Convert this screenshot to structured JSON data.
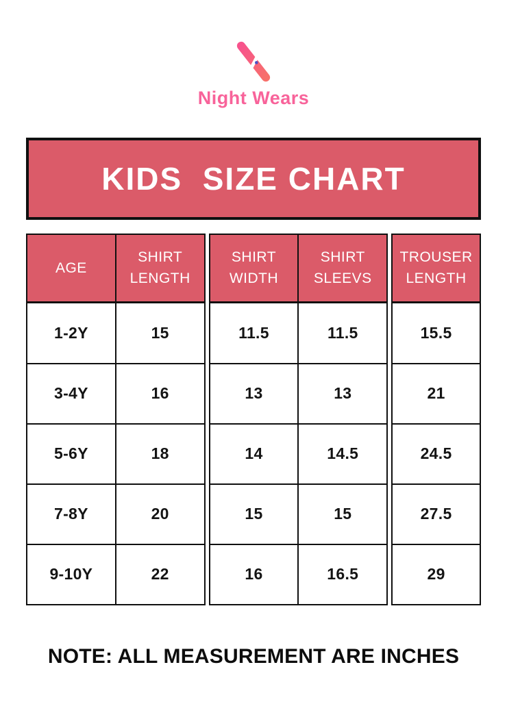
{
  "logo": {
    "icon": "night-wears-n-monogram",
    "brand": "Night Wears"
  },
  "banner": {
    "title": "KIDS  SIZE CHART"
  },
  "table": {
    "columns": [
      {
        "key": "age",
        "label": "AGE",
        "block": 0
      },
      {
        "key": "shirt-length",
        "label": "SHIRT LENGTH",
        "block": 0
      },
      {
        "key": "shirt-width",
        "label": "SHIRT WIDTH",
        "block": 1
      },
      {
        "key": "shirt-sleevs",
        "label": "SHIRT SLEEVS",
        "block": 1
      },
      {
        "key": "trouser-length",
        "label": "TROUSER LENGTH",
        "block": 2
      }
    ],
    "rows": [
      [
        "1-2Y",
        "15",
        "11.5",
        "11.5",
        "15.5"
      ],
      [
        "3-4Y",
        "16",
        "13",
        "13",
        "21"
      ],
      [
        "5-6Y",
        "18",
        "14",
        "14.5",
        "24.5"
      ],
      [
        "7-8Y",
        "20",
        "15",
        "15",
        "27.5"
      ],
      [
        "9-10Y",
        "22",
        "16",
        "16.5",
        "29"
      ]
    ]
  },
  "note": {
    "text": "NOTE: ALL MEASUREMENT ARE INCHES"
  },
  "colors": {
    "rose": "#db5b69",
    "ink": "#101010",
    "brand-pink": "#f8639a",
    "logo-pink": "#f7538c",
    "logo-coral": "#f7706b",
    "dot-blue": "#4a4fc4"
  }
}
